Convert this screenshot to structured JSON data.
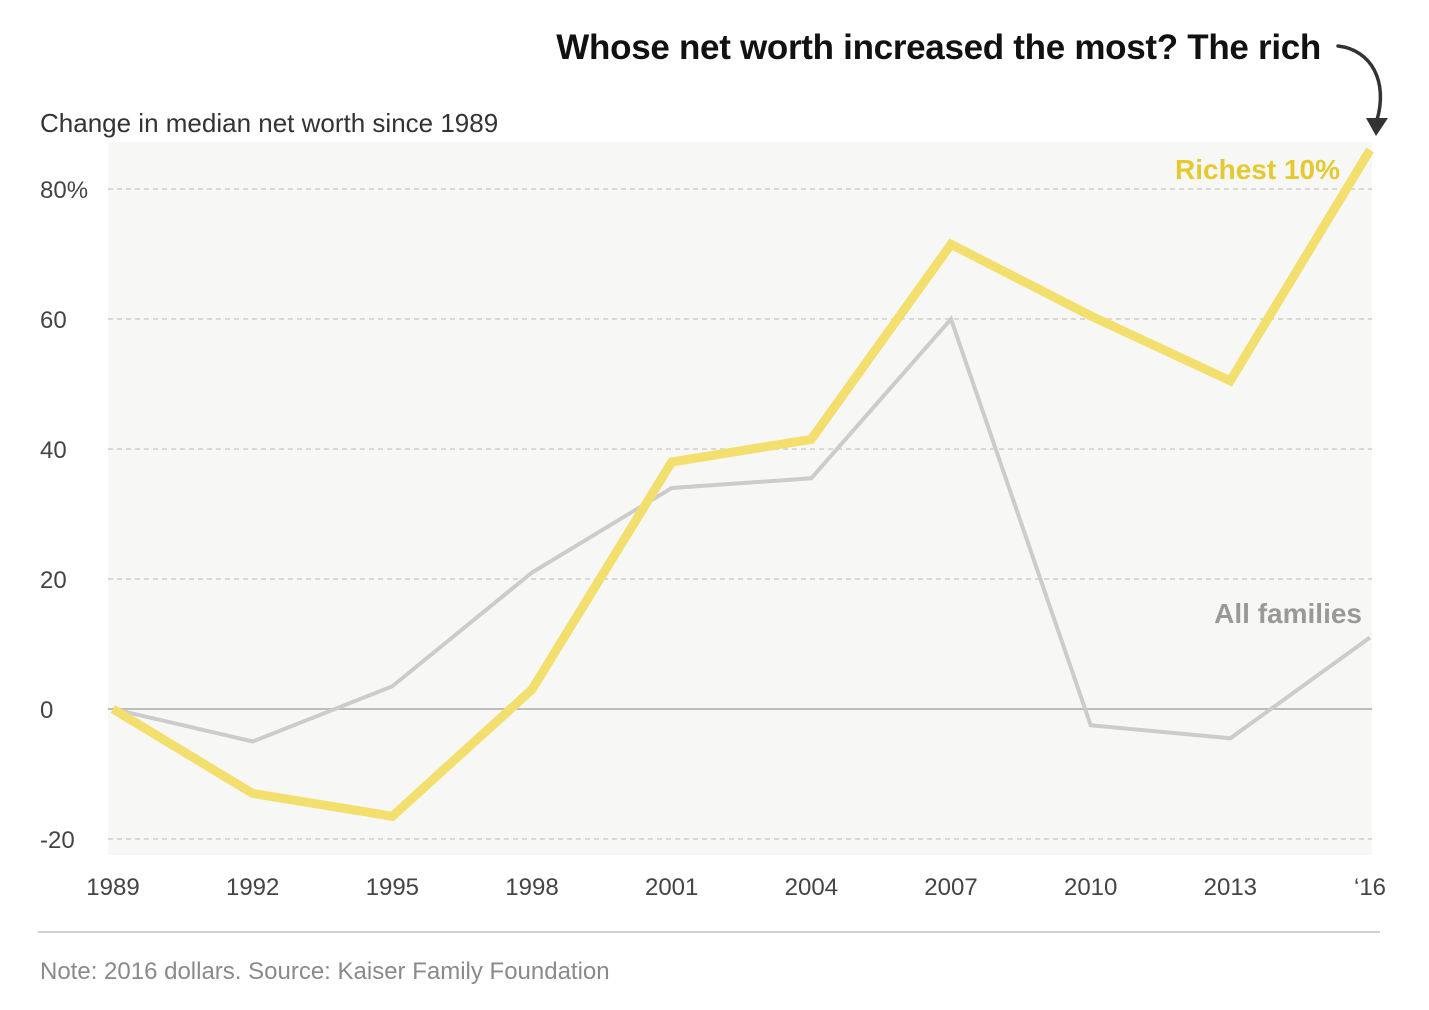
{
  "headline": "Whose net worth increased the most? The rich",
  "note": "Note: 2016 dollars. Source: Kaiser Family Foundation",
  "colors": {
    "rich": "#f2df6e",
    "rich_label": "#e5c931",
    "all": "#cccccc",
    "all_label": "#999999",
    "panel": "#f7f7f5",
    "grid": "#d9d9d9",
    "zero": "#bdbdbd",
    "arrow": "#333333"
  },
  "chart_data": {
    "type": "line",
    "ylabel": "Change in median net worth since 1989",
    "x": [
      1989,
      1992,
      1995,
      1998,
      2001,
      2004,
      2007,
      2010,
      2013,
      2016
    ],
    "x_tick_labels": [
      "1989",
      "1992",
      "1995",
      "1998",
      "2001",
      "2004",
      "2007",
      "2010",
      "2013",
      "‘16"
    ],
    "y_ticks": [
      -20,
      0,
      20,
      40,
      60,
      80
    ],
    "y_tick_labels": [
      "-20",
      "0",
      "20",
      "40",
      "60",
      "80%"
    ],
    "ylim": [
      -20,
      87
    ],
    "grid": true,
    "series": [
      {
        "name": "All families",
        "values": [
          0,
          -5,
          3.5,
          21,
          34,
          35.5,
          60,
          -2.5,
          -4.5,
          11
        ]
      },
      {
        "name": "Richest 10%",
        "values": [
          0,
          -13,
          -16.5,
          3,
          38,
          41.5,
          71.5,
          60.5,
          50.5,
          86
        ]
      }
    ]
  }
}
